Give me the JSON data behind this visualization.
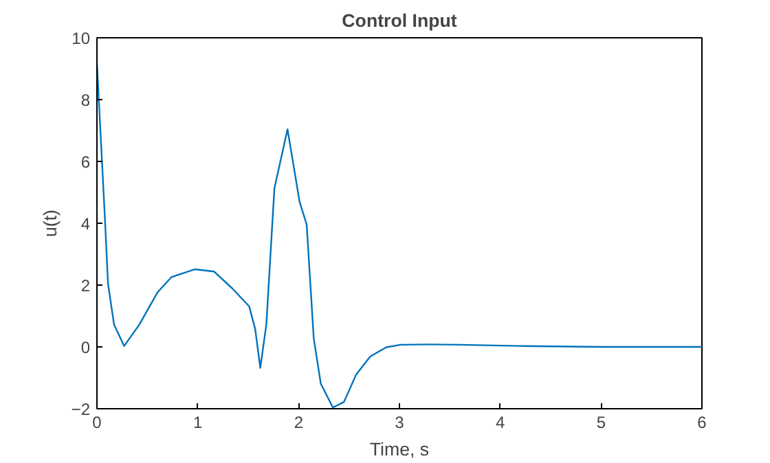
{
  "chart_data": {
    "type": "line",
    "title": "Control Input",
    "xlabel": "Time, s",
    "ylabel": "u(t)",
    "x": [
      0,
      0.05,
      0.08,
      0.11,
      0.17,
      0.27,
      0.42,
      0.6,
      0.74,
      0.97,
      1.16,
      1.34,
      1.51,
      1.57,
      1.62,
      1.68,
      1.72,
      1.76,
      1.89,
      2.01,
      2.08,
      2.15,
      2.22,
      2.34,
      2.45,
      2.57,
      2.71,
      2.87,
      3.01,
      3.3,
      3.6,
      4.2,
      5,
      6
    ],
    "series": [
      {
        "color": "#0072bd",
        "values": [
          9.2,
          6.0,
          4.1,
          2.04,
          0.72,
          0.03,
          0.72,
          1.76,
          2.26,
          2.51,
          2.44,
          1.9,
          1.31,
          0.57,
          -0.68,
          0.72,
          2.93,
          5.13,
          7.04,
          4.69,
          3.96,
          0.28,
          -1.19,
          -1.96,
          -1.78,
          -0.9,
          -0.31,
          -0.01,
          0.07,
          0.08,
          0.07,
          0.03,
          0,
          0
        ]
      }
    ],
    "xlim": [
      0,
      6
    ],
    "ylim": [
      -2,
      10
    ],
    "xticks": [
      0,
      1,
      2,
      3,
      4,
      5,
      6
    ],
    "yticks": [
      -2,
      0,
      2,
      4,
      6,
      8,
      10
    ],
    "grid": false
  }
}
